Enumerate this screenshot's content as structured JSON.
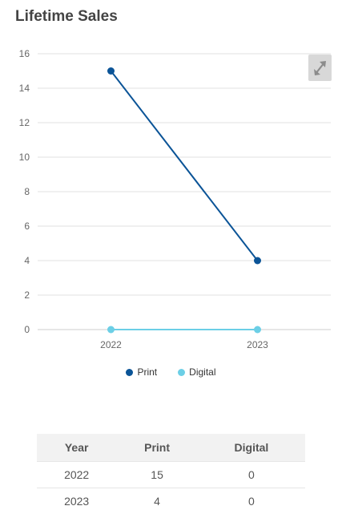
{
  "page": {
    "title": "Lifetime Sales"
  },
  "chart_data": {
    "type": "line",
    "x": [
      "2022",
      "2023"
    ],
    "series": [
      {
        "name": "Print",
        "values": [
          15,
          4
        ],
        "color": "#0b5497"
      },
      {
        "name": "Digital",
        "values": [
          0,
          0
        ],
        "color": "#6ccfe6"
      }
    ],
    "ylim": [
      0,
      16
    ],
    "yticks": [
      0,
      2,
      4,
      6,
      8,
      10,
      12,
      14,
      16
    ],
    "grid": true,
    "legend": "bottom-center"
  },
  "controls": {
    "expand_icon": "expand-arrows-icon"
  },
  "table": {
    "headers": [
      "Year",
      "Print",
      "Digital"
    ],
    "rows": [
      [
        "2022",
        "15",
        "0"
      ],
      [
        "2023",
        "4",
        "0"
      ]
    ]
  }
}
